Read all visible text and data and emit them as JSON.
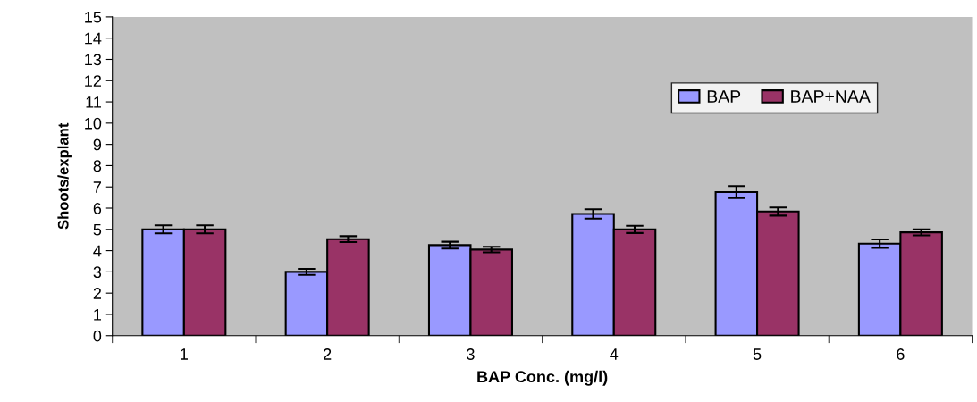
{
  "chart_data": {
    "type": "bar",
    "xlabel": "BAP Conc. (mg/l)",
    "ylabel": "Shoots/explant",
    "categories": [
      "1",
      "2",
      "3",
      "4",
      "5",
      "6"
    ],
    "series": [
      {
        "name": "BAP",
        "color": "#9999ff",
        "values": [
          5.0,
          3.0,
          4.26,
          5.73,
          6.76,
          4.33
        ],
        "errors": [
          0.19,
          0.14,
          0.16,
          0.22,
          0.28,
          0.2
        ]
      },
      {
        "name": "BAP+NAA",
        "color": "#993366",
        "values": [
          5.0,
          4.54,
          4.05,
          5.0,
          5.84,
          4.86
        ],
        "errors": [
          0.19,
          0.14,
          0.13,
          0.17,
          0.19,
          0.14
        ]
      }
    ],
    "ylim": [
      0,
      15
    ],
    "yticks": [
      0,
      1,
      2,
      3,
      4,
      5,
      6,
      7,
      8,
      9,
      10,
      11,
      12,
      13,
      14,
      15
    ],
    "grid": false,
    "legend": "top right"
  }
}
